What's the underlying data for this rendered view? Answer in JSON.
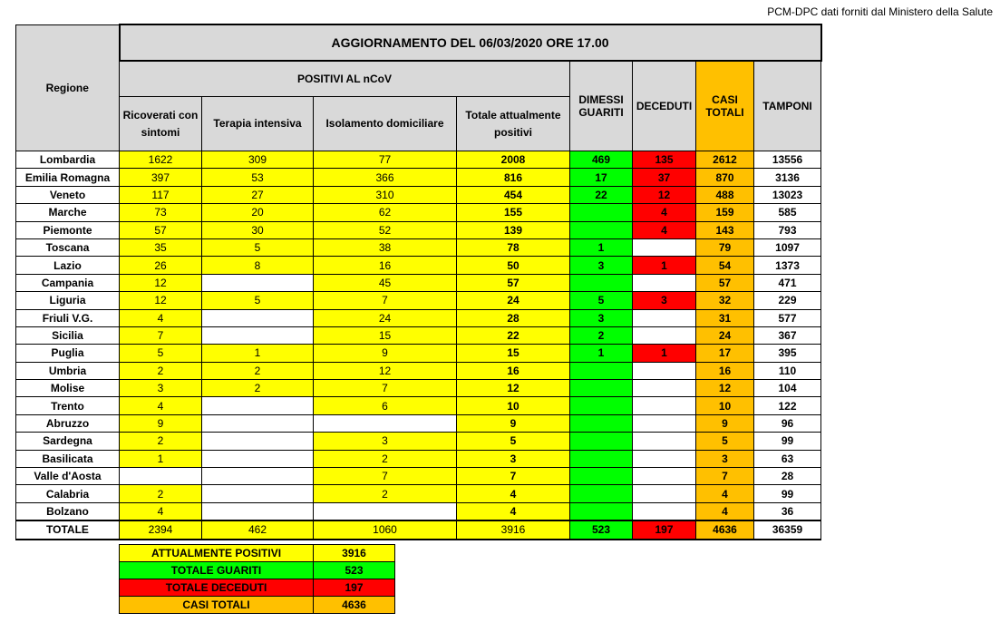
{
  "source_note": "PCM-DPC dati forniti dal Ministero della Salute",
  "title": "AGGIORNAMENTO DEL 06/03/2020 ORE 17.00",
  "headers": {
    "regione": "Regione",
    "positivi": "POSITIVI AL nCoV",
    "ricoverati": "Ricoverati con sintomi",
    "terapia": "Terapia intensiva",
    "isolamento": "Isolamento domiciliare",
    "totale_positivi": "Totale attualmente positivi",
    "dimessi": "DIMESSI GUARITI",
    "deceduti": "DECEDUTI",
    "casi": "CASI TOTALI",
    "tamponi": "TAMPONI"
  },
  "rows": [
    [
      "Lombardia",
      "1622",
      "309",
      "77",
      "2008",
      "469",
      "135",
      "2612",
      "13556"
    ],
    [
      "Emilia Romagna",
      "397",
      "53",
      "366",
      "816",
      "17",
      "37",
      "870",
      "3136"
    ],
    [
      "Veneto",
      "117",
      "27",
      "310",
      "454",
      "22",
      "12",
      "488",
      "13023"
    ],
    [
      "Marche",
      "73",
      "20",
      "62",
      "155",
      "",
      "4",
      "159",
      "585"
    ],
    [
      "Piemonte",
      "57",
      "30",
      "52",
      "139",
      "",
      "4",
      "143",
      "793"
    ],
    [
      "Toscana",
      "35",
      "5",
      "38",
      "78",
      "1",
      "",
      "79",
      "1097"
    ],
    [
      "Lazio",
      "26",
      "8",
      "16",
      "50",
      "3",
      "1",
      "54",
      "1373"
    ],
    [
      "Campania",
      "12",
      "",
      "45",
      "57",
      "",
      "",
      "57",
      "471"
    ],
    [
      "Liguria",
      "12",
      "5",
      "7",
      "24",
      "5",
      "3",
      "32",
      "229"
    ],
    [
      "Friuli V.G.",
      "4",
      "",
      "24",
      "28",
      "3",
      "",
      "31",
      "577"
    ],
    [
      "Sicilia",
      "7",
      "",
      "15",
      "22",
      "2",
      "",
      "24",
      "367"
    ],
    [
      "Puglia",
      "5",
      "1",
      "9",
      "15",
      "1",
      "1",
      "17",
      "395"
    ],
    [
      "Umbria",
      "2",
      "2",
      "12",
      "16",
      "",
      "",
      "16",
      "110"
    ],
    [
      "Molise",
      "3",
      "2",
      "7",
      "12",
      "",
      "",
      "12",
      "104"
    ],
    [
      "Trento",
      "4",
      "",
      "6",
      "10",
      "",
      "",
      "10",
      "122"
    ],
    [
      "Abruzzo",
      "9",
      "",
      "",
      "9",
      "",
      "",
      "9",
      "96"
    ],
    [
      "Sardegna",
      "2",
      "",
      "3",
      "5",
      "",
      "",
      "5",
      "99"
    ],
    [
      "Basilicata",
      "1",
      "",
      "2",
      "3",
      "",
      "",
      "3",
      "63"
    ],
    [
      "Valle d'Aosta",
      "",
      "",
      "7",
      "7",
      "",
      "",
      "7",
      "28"
    ],
    [
      "Calabria",
      "2",
      "",
      "2",
      "4",
      "",
      "",
      "4",
      "99"
    ],
    [
      "Bolzano",
      "4",
      "",
      "",
      "4",
      "",
      "",
      "4",
      "36"
    ]
  ],
  "totals": [
    "TOTALE",
    "2394",
    "462",
    "1060",
    "3916",
    "523",
    "197",
    "4636",
    "36359"
  ],
  "summary": [
    {
      "label": "ATTUALMENTE POSITIVI",
      "value": "3916",
      "color": "#ffff00"
    },
    {
      "label": "TOTALE GUARITI",
      "value": "523",
      "color": "#00ff00"
    },
    {
      "label": "TOTALE DECEDUTI",
      "value": "197",
      "color": "#ff0000"
    },
    {
      "label": "CASI TOTALI",
      "value": "4636",
      "color": "#ffc000"
    }
  ]
}
